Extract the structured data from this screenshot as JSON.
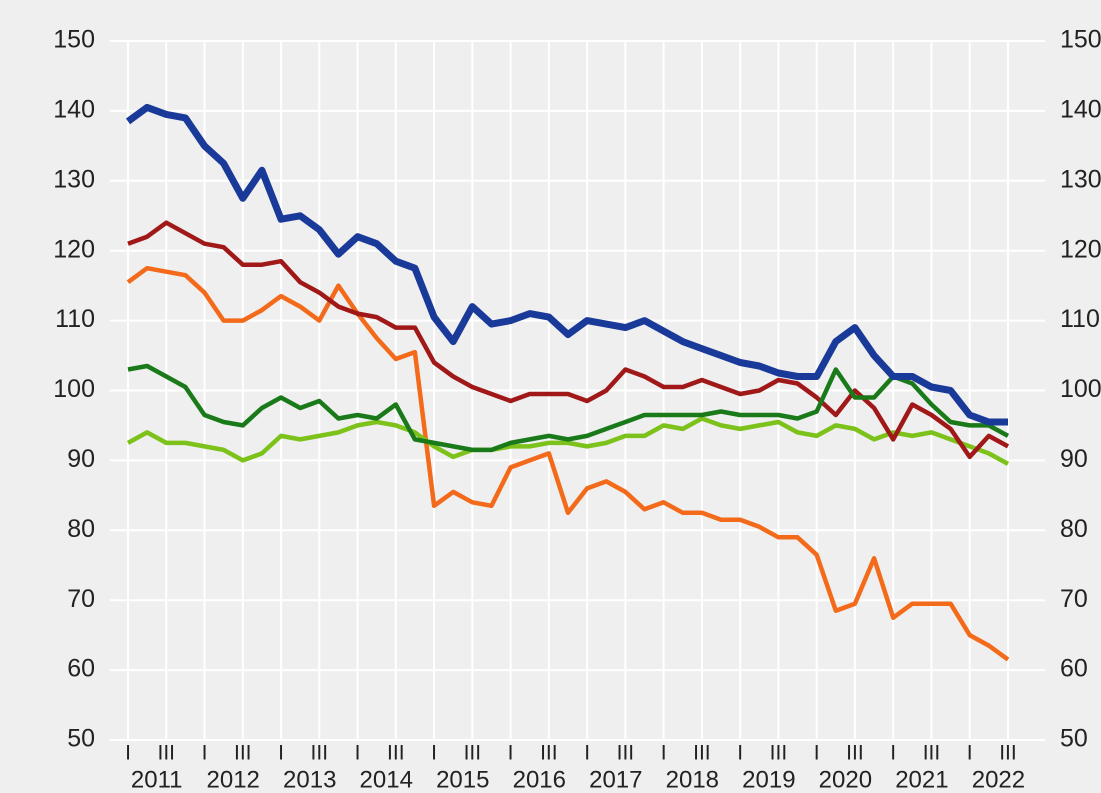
{
  "chart_data": {
    "type": "line",
    "categories": [
      "I",
      null,
      "III",
      null,
      "I",
      null,
      "III",
      null,
      "I",
      null,
      "III",
      null,
      "I",
      null,
      "III",
      null,
      "I",
      null,
      "III",
      null,
      "I",
      null,
      "III",
      null,
      "I",
      null,
      "III",
      null,
      "I",
      null,
      "III",
      null,
      "I",
      null,
      "III",
      null,
      "I",
      null,
      "III",
      null,
      "I",
      null,
      "III",
      null,
      "I",
      null,
      "III"
    ],
    "years": [
      "2011",
      "2012",
      "2013",
      "2014",
      "2015",
      "2016",
      "2017",
      "2018",
      "2019",
      "2020",
      "2021",
      "2022"
    ],
    "ylim": [
      50,
      150
    ],
    "yticks": [
      50,
      60,
      70,
      80,
      90,
      100,
      110,
      120,
      130,
      140,
      150
    ],
    "y2lim": [
      50,
      150
    ],
    "y2ticks": [
      50,
      60,
      70,
      80,
      90,
      100,
      110,
      120,
      130,
      140,
      150
    ],
    "grid": true,
    "series": [
      {
        "color": "#f26a1a",
        "values": [
          115.5,
          117.5,
          117,
          116.5,
          114,
          110,
          110,
          111.5,
          113.5,
          112,
          110,
          115,
          111,
          107.5,
          104.5,
          105.5,
          83.5,
          85.5,
          84,
          83.5,
          89,
          90,
          91,
          82.5,
          86,
          87,
          85.5,
          83,
          84,
          82.5,
          82.5,
          81.5,
          81.5,
          80.5,
          79,
          79,
          76.5,
          68.5,
          69.5,
          76,
          67.5,
          69.5,
          69.5,
          69.5,
          65,
          63.5,
          61.5
        ]
      },
      {
        "color": "#7cc21a",
        "values": [
          92.5,
          94,
          92.5,
          92.5,
          92,
          91.5,
          90,
          91,
          93.5,
          93,
          93.5,
          94,
          95,
          95.5,
          95,
          94,
          92,
          90.5,
          91.5,
          91.5,
          92,
          92,
          92.5,
          92.5,
          92,
          92.5,
          93.5,
          93.5,
          95,
          94.5,
          96,
          95,
          94.5,
          95,
          95.5,
          94,
          93.5,
          95,
          94.5,
          93,
          94,
          93.5,
          94,
          93,
          92,
          91,
          89.5
        ]
      },
      {
        "color": "#a01818",
        "values": [
          121,
          122,
          124,
          122.5,
          121,
          120.5,
          118,
          118,
          118.5,
          115.5,
          114,
          112,
          111,
          110.5,
          109,
          109,
          104,
          102,
          100.5,
          99.5,
          98.5,
          99.5,
          99.5,
          99.5,
          98.5,
          100,
          103,
          102,
          100.5,
          100.5,
          101.5,
          100.5,
          99.5,
          100,
          101.5,
          101,
          99,
          96.5,
          100,
          97.5,
          93,
          98,
          96.5,
          94.5,
          90.5,
          93.5,
          92
        ]
      },
      {
        "color": "#1a7a1a",
        "values": [
          103,
          103.5,
          102,
          100.5,
          96.5,
          95.5,
          95,
          97.5,
          99,
          97.5,
          98.5,
          96,
          96.5,
          96,
          98,
          93,
          92.5,
          92,
          91.5,
          91.5,
          92.5,
          93,
          93.5,
          93,
          93.5,
          94.5,
          95.5,
          96.5,
          96.5,
          96.5,
          96.5,
          97,
          96.5,
          96.5,
          96.5,
          96,
          97,
          103,
          99,
          99,
          102,
          101,
          98,
          95.5,
          95,
          95,
          93.5
        ]
      },
      {
        "color": "#1a3a9a",
        "values": [
          138.5,
          140.5,
          139.5,
          139,
          135,
          132.5,
          127.5,
          131.5,
          124.5,
          125,
          123,
          119.5,
          122,
          121,
          118.5,
          117.5,
          110.5,
          107,
          112,
          109.5,
          110,
          111,
          110.5,
          108,
          110,
          109.5,
          109,
          110,
          108.5,
          107,
          106,
          105,
          104,
          103.5,
          102.5,
          102,
          102,
          107,
          109,
          105,
          102,
          102,
          100.5,
          100,
          96.5,
          95.5,
          95.5
        ]
      }
    ]
  }
}
